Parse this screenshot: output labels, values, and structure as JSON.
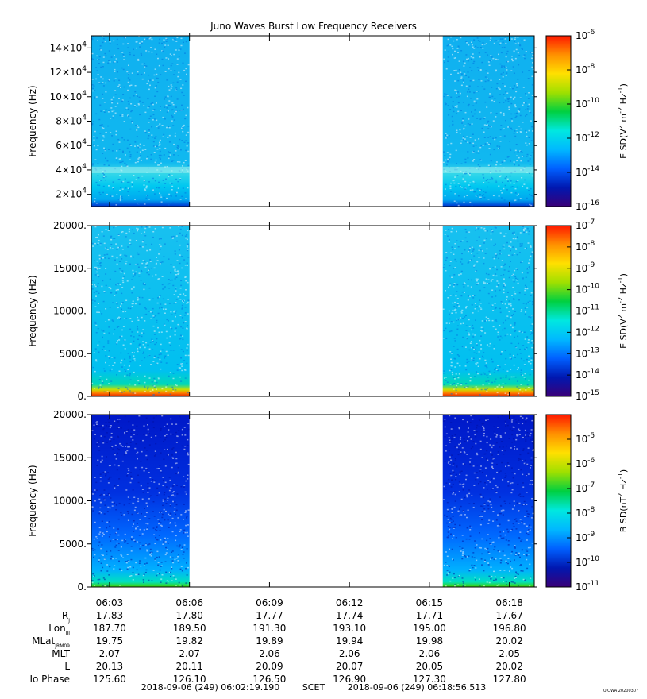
{
  "title": "Juno Waves Burst Low Frequency Receivers",
  "chart_data": [
    {
      "type": "heatmap",
      "ylabel": "Frequency (Hz)",
      "ylim": [
        10000,
        150000
      ],
      "yticks": [
        {
          "v": 20000,
          "m": "2",
          "e": "4"
        },
        {
          "v": 40000,
          "m": "4",
          "e": "4"
        },
        {
          "v": 60000,
          "m": "6",
          "e": "4"
        },
        {
          "v": 80000,
          "m": "8",
          "e": "4"
        },
        {
          "v": 100000,
          "m": "10",
          "e": "4"
        },
        {
          "v": 120000,
          "m": "12",
          "e": "4"
        },
        {
          "v": 140000,
          "m": "14",
          "e": "4"
        }
      ],
      "colorbar": {
        "label_prefix": "E SD(V",
        "label_mid": " m",
        "label_suffix": " Hz",
        "sup2": "2",
        "sup3": "-2",
        "sup4": "-1",
        "log_range": [
          -16,
          -6
        ],
        "ticks": [
          "-6",
          "-8",
          "-10",
          "-12",
          "-14",
          "-16"
        ]
      },
      "data_intervals": [
        [
          "06:02:19",
          "06:06:00"
        ],
        [
          "06:15:30",
          "06:18:56"
        ]
      ],
      "features": [
        {
          "freq_hz": 40000,
          "note": "narrow band"
        }
      ]
    },
    {
      "type": "heatmap",
      "ylabel": "Frequency (Hz)",
      "ylim": [
        0,
        20000
      ],
      "yticks": [
        {
          "v": 0,
          "label": "0."
        },
        {
          "v": 5000,
          "label": "5000."
        },
        {
          "v": 10000,
          "label": "10000."
        },
        {
          "v": 15000,
          "label": "15000."
        },
        {
          "v": 20000,
          "label": "20000."
        }
      ],
      "colorbar": {
        "label_prefix": "E SD(V",
        "label_mid": " m",
        "label_suffix": " Hz",
        "sup2": "2",
        "sup3": "-2",
        "sup4": "-1",
        "log_range": [
          -15,
          -7
        ],
        "ticks": [
          "-7",
          "-8",
          "-9",
          "-10",
          "-11",
          "-12",
          "-13",
          "-14",
          "-15"
        ]
      },
      "data_intervals": [
        [
          "06:02:19",
          "06:06:00"
        ],
        [
          "06:15:30",
          "06:18:56"
        ]
      ]
    },
    {
      "type": "heatmap",
      "ylabel": "Frequency (Hz)",
      "ylim": [
        0,
        20000
      ],
      "yticks": [
        {
          "v": 0,
          "label": "0."
        },
        {
          "v": 5000,
          "label": "5000."
        },
        {
          "v": 10000,
          "label": "10000."
        },
        {
          "v": 15000,
          "label": "15000."
        },
        {
          "v": 20000,
          "label": "20000."
        }
      ],
      "colorbar": {
        "label_prefix": "B SD(nT",
        "label_mid": " Hz",
        "label_suffix": "",
        "sup2": "2",
        "sup3": "-1",
        "sup4": "",
        "log_range": [
          -11,
          -4
        ],
        "ticks": [
          "-5",
          "-6",
          "-7",
          "-8",
          "-9",
          "-10",
          "-11"
        ]
      },
      "data_intervals": [
        [
          "06:02:19",
          "06:06:00"
        ],
        [
          "06:15:30",
          "06:18:56"
        ]
      ]
    }
  ],
  "xaxis": {
    "time_range": [
      "06:02:19",
      "06:18:56"
    ],
    "tick_labels": [
      "06:03",
      "06:06",
      "06:09",
      "06:12",
      "06:15",
      "06:18"
    ]
  },
  "ephemeris": {
    "rows": [
      {
        "label": "R",
        "sub": "J",
        "values": [
          "17.83",
          "17.80",
          "17.77",
          "17.74",
          "17.71",
          "17.67"
        ]
      },
      {
        "label": "Lon",
        "sub": "III",
        "values": [
          "187.70",
          "189.50",
          "191.30",
          "193.10",
          "195.00",
          "196.80"
        ]
      },
      {
        "label": "MLat",
        "sub": "JRM09",
        "values": [
          "19.75",
          "19.82",
          "19.89",
          "19.94",
          "19.98",
          "20.02"
        ]
      },
      {
        "label": "MLT",
        "sub": "",
        "values": [
          "2.07",
          "2.07",
          "2.06",
          "2.06",
          "2.06",
          "2.05"
        ]
      },
      {
        "label": "L",
        "sub": "",
        "values": [
          "20.13",
          "20.11",
          "20.09",
          "20.07",
          "20.05",
          "20.02"
        ]
      },
      {
        "label": "Io Phase",
        "sub": "",
        "values": [
          "125.60",
          "126.10",
          "126.50",
          "126.90",
          "127.30",
          "127.80"
        ]
      }
    ]
  },
  "footer": {
    "start": "2018-09-06 (249) 06:02:19.190",
    "scet": "SCET",
    "end": "2018-09-06 (249) 06:18:56.513",
    "stamp": "UIOWA 20200307"
  }
}
